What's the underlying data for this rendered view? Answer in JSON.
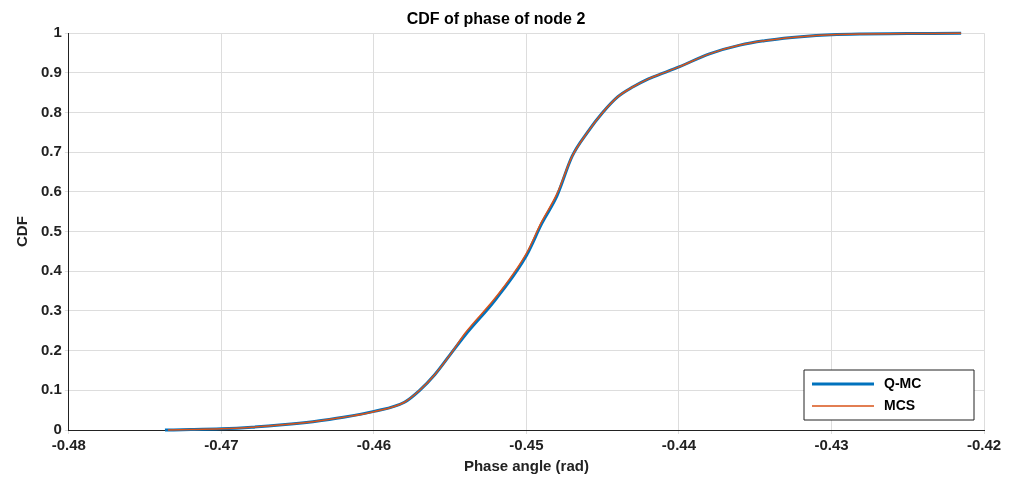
{
  "chart_data": {
    "type": "line",
    "title": "CDF of phase of node 2",
    "xlabel": "Phase angle (rad)",
    "ylabel": "CDF",
    "xlim": [
      -0.48,
      -0.42
    ],
    "xticks": [
      -0.48,
      -0.47,
      -0.46,
      -0.45,
      -0.44,
      -0.43,
      -0.42
    ],
    "ylim": [
      0,
      1
    ],
    "yticks": [
      0,
      0.1,
      0.2,
      0.3,
      0.4,
      0.5,
      0.6,
      0.7,
      0.8,
      0.9,
      1
    ],
    "grid": true,
    "legend": "bottom right",
    "marker": "none",
    "line_style": "solid",
    "series": [
      {
        "name": "Q-MC",
        "color": "#0072bd",
        "x": [
          -0.4737,
          -0.472,
          -0.47,
          -0.468,
          -0.466,
          -0.464,
          -0.462,
          -0.46,
          -0.458,
          -0.457,
          -0.456,
          -0.455,
          -0.454,
          -0.452,
          -0.45,
          -0.449,
          -0.448,
          -0.447,
          -0.446,
          -0.445,
          -0.444,
          -0.443,
          -0.442,
          -0.441,
          -0.44,
          -0.438,
          -0.436,
          -0.434,
          -0.432,
          -0.43,
          -0.428,
          -0.425,
          -0.4215
        ],
        "values": [
          0,
          0.001,
          0.003,
          0.007,
          0.013,
          0.021,
          0.032,
          0.047,
          0.07,
          0.1,
          0.14,
          0.19,
          0.24,
          0.33,
          0.44,
          0.52,
          0.59,
          0.69,
          0.75,
          0.8,
          0.84,
          0.865,
          0.885,
          0.9,
          0.915,
          0.948,
          0.97,
          0.983,
          0.991,
          0.996,
          0.998,
          0.999,
          1
        ]
      },
      {
        "name": "MCS",
        "color": "#d95319",
        "x": [
          -0.4735,
          -0.472,
          -0.47,
          -0.468,
          -0.466,
          -0.464,
          -0.462,
          -0.46,
          -0.458,
          -0.457,
          -0.456,
          -0.455,
          -0.454,
          -0.452,
          -0.45,
          -0.449,
          -0.448,
          -0.447,
          -0.446,
          -0.445,
          -0.444,
          -0.443,
          -0.442,
          -0.441,
          -0.44,
          -0.438,
          -0.436,
          -0.434,
          -0.432,
          -0.43,
          -0.428,
          -0.425,
          -0.4215
        ],
        "values": [
          0,
          0.001,
          0.003,
          0.007,
          0.013,
          0.021,
          0.032,
          0.046,
          0.07,
          0.1,
          0.14,
          0.19,
          0.245,
          0.335,
          0.445,
          0.525,
          0.595,
          0.69,
          0.75,
          0.8,
          0.84,
          0.865,
          0.885,
          0.9,
          0.915,
          0.948,
          0.97,
          0.983,
          0.991,
          0.996,
          0.998,
          0.999,
          1
        ]
      }
    ]
  }
}
